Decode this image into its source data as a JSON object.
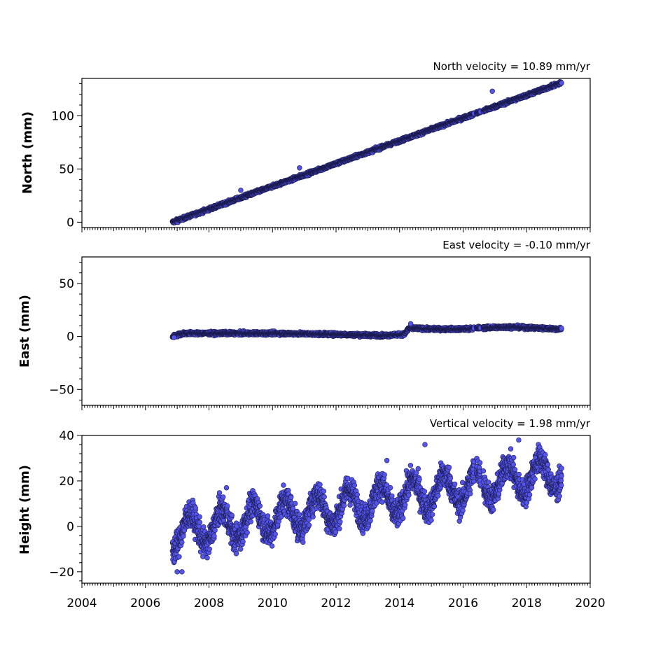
{
  "chart_data": [
    {
      "type": "scatter",
      "title": "North velocity = 10.89 mm/yr",
      "ylabel": "North (mm)",
      "xlim": [
        2004,
        2020
      ],
      "ylim": [
        -5,
        135
      ],
      "yticks": [
        0,
        50,
        100
      ],
      "velocity_mm_per_yr": 10.89,
      "series": [
        {
          "x_start": 2006.85,
          "x_end": 2019.1,
          "trend_start": 0,
          "trend_end": 131,
          "scatter_amplitude": 1.5,
          "gaps": [
            [
              2016.35,
              2016.42
            ],
            [
              2016.55,
              2016.63
            ]
          ],
          "outliers": [
            [
              2016.92,
              123
            ],
            [
              2010.85,
              51
            ],
            [
              2009.0,
              30
            ]
          ]
        }
      ]
    },
    {
      "type": "scatter",
      "title": "East velocity = -0.10 mm/yr",
      "ylabel": "East (mm)",
      "xlim": [
        2004,
        2020
      ],
      "ylim": [
        -65,
        75
      ],
      "yticks": [
        -50,
        0,
        50
      ],
      "velocity_mm_per_yr": -0.1,
      "series": [
        {
          "x_start": 2006.85,
          "x_end": 2019.1,
          "profile": [
            [
              2006.85,
              0
            ],
            [
              2007.2,
              3
            ],
            [
              2008.0,
              3
            ],
            [
              2010.0,
              3
            ],
            [
              2012.0,
              2
            ],
            [
              2013.5,
              1
            ],
            [
              2014.15,
              2
            ],
            [
              2014.3,
              8
            ],
            [
              2015.0,
              7
            ],
            [
              2016.0,
              7
            ],
            [
              2016.5,
              8
            ],
            [
              2017.5,
              9
            ],
            [
              2019.1,
              7
            ]
          ],
          "scatter_amplitude": 1.5,
          "gaps": [
            [
              2016.35,
              2016.42
            ],
            [
              2016.55,
              2016.63
            ]
          ],
          "outliers": [
            [
              2014.35,
              12
            ],
            [
              2006.9,
              -1
            ]
          ]
        }
      ]
    },
    {
      "type": "scatter",
      "title": "Vertical velocity = 1.98 mm/yr",
      "ylabel": "Height (mm)",
      "xlim": [
        2004,
        2020
      ],
      "ylim": [
        -25,
        40
      ],
      "yticks": [
        -20,
        0,
        20,
        40
      ],
      "velocity_mm_per_yr": 1.98,
      "series": [
        {
          "x_start": 2006.85,
          "x_end": 2019.1,
          "trend_start": -3,
          "trend_end": 24,
          "seasonal_amplitude": 7,
          "scatter_amplitude": 6,
          "gaps": [
            [
              2016.35,
              2016.42
            ],
            [
              2016.55,
              2016.63
            ]
          ],
          "outliers": [
            [
              2007.0,
              -20
            ],
            [
              2007.15,
              -20
            ],
            [
              2014.8,
              36
            ],
            [
              2017.75,
              38
            ],
            [
              2013.6,
              29
            ],
            [
              2008.55,
              17
            ]
          ]
        }
      ]
    }
  ],
  "xticks": [
    2004,
    2006,
    2008,
    2010,
    2012,
    2014,
    2016,
    2018,
    2020
  ],
  "marker_color": "#5555ee",
  "marker_edge_color": "#1a1a4d"
}
